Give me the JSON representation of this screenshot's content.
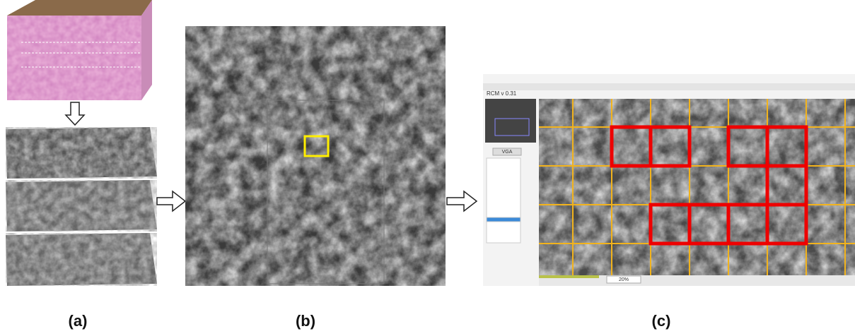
{
  "panels": {
    "a": "(a)",
    "b": "(b)",
    "c": "(c)"
  },
  "app": {
    "title": "RCM  v 0.31",
    "button": "VGA",
    "zoom": "20%"
  }
}
